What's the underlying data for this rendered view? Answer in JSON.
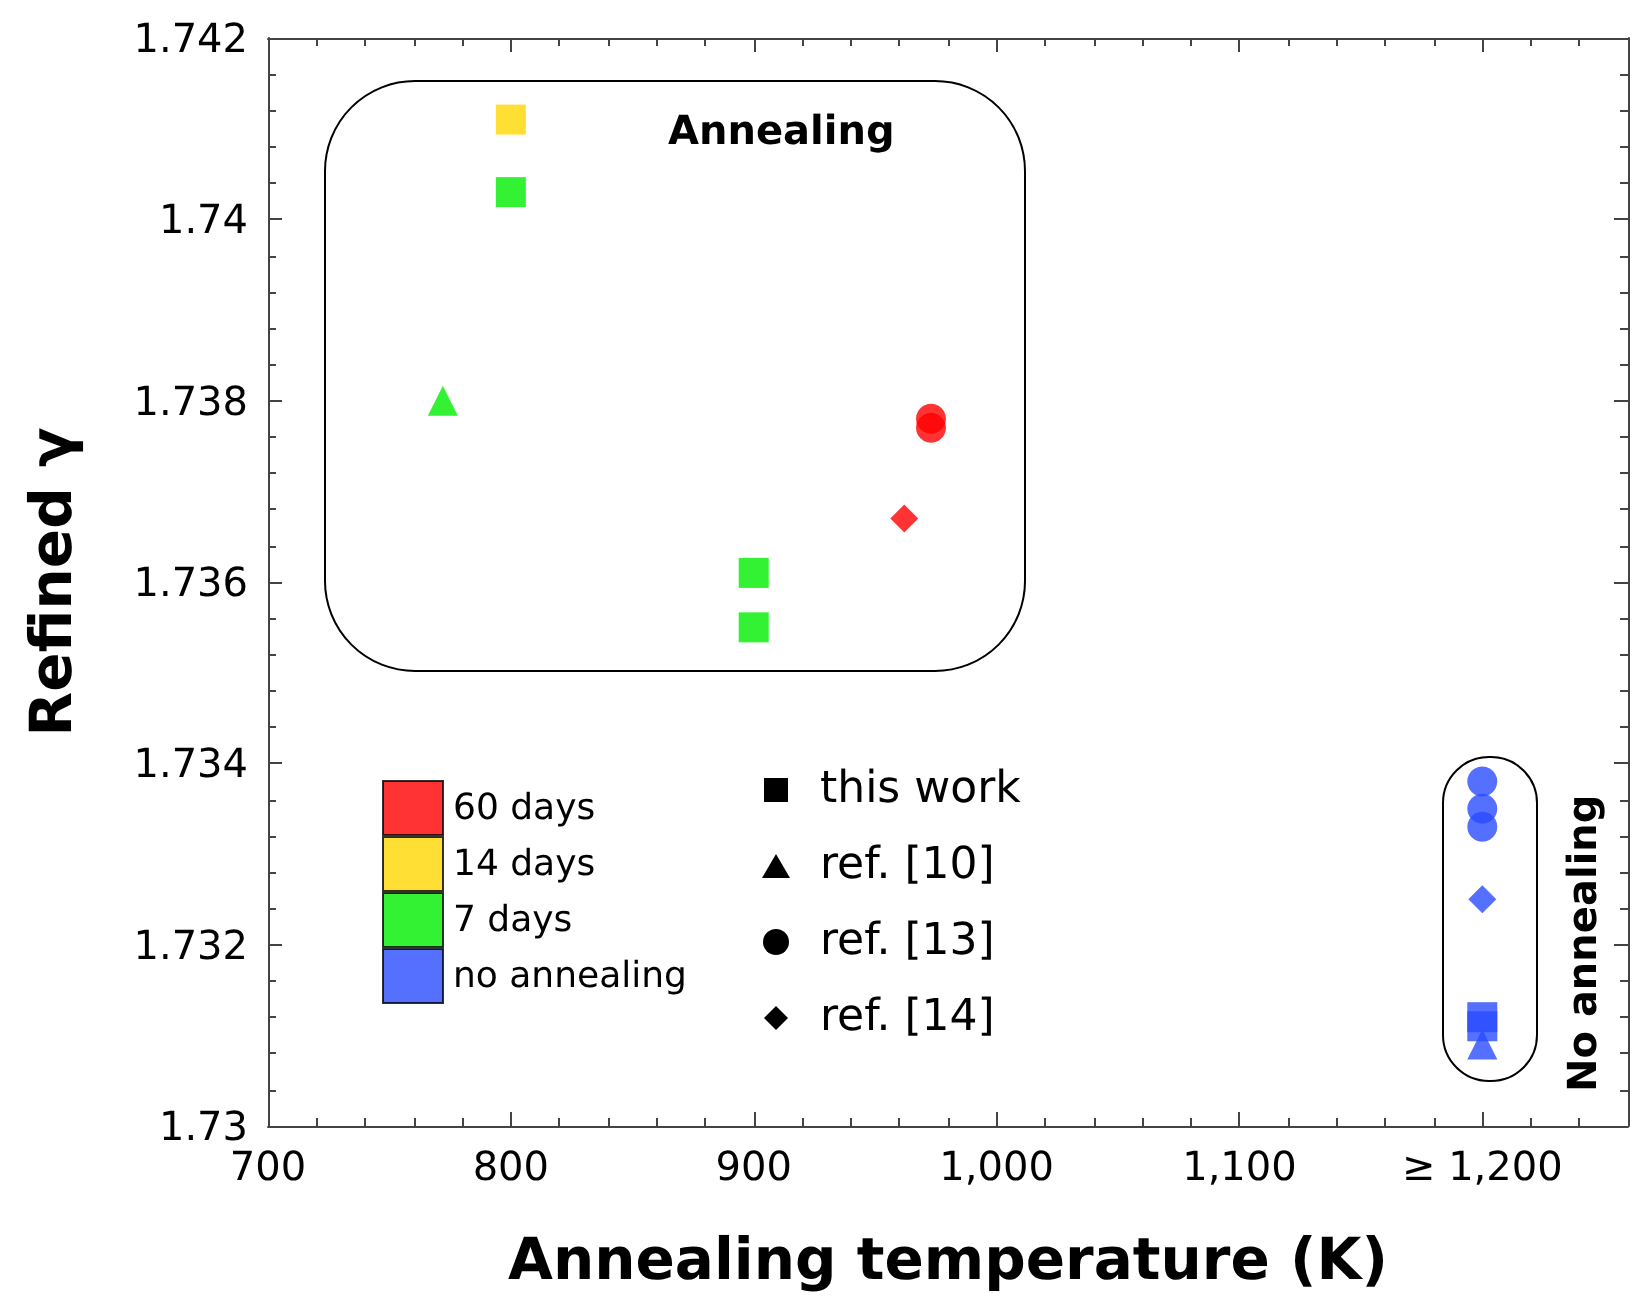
{
  "chart_data": {
    "type": "scatter",
    "xlabel": "Annealing temperature (K)",
    "ylabel": "Refined γ",
    "xlim": [
      700,
      1260
    ],
    "xticks": [
      700,
      800,
      900,
      {
        "value": 1000,
        "label": "1,000"
      },
      {
        "value": 1100,
        "label": "1,100"
      },
      {
        "value": 1200,
        "label": "≥ 1,200"
      }
    ],
    "ylim": [
      1.73,
      1.742
    ],
    "yticks": [
      1.73,
      1.732,
      1.734,
      1.736,
      1.738,
      1.74,
      1.742
    ],
    "legend": "bottom left",
    "grid": false,
    "annotations": [
      "Annealing",
      "No annealing",
      "this work",
      "ref. [10]",
      "ref. [13]",
      "ref. [14]"
    ],
    "series": [
      {
        "name": "60 days",
        "color": "#ff0000",
        "marker": "circle",
        "x": [
          973,
          973
        ],
        "values": [
          1.7378,
          1.7377
        ]
      },
      {
        "color": "#ff0000",
        "marker": "diamond",
        "x": [
          962
        ],
        "values": [
          1.7367
        ]
      },
      {
        "name": "14 days",
        "color": "#ffd700",
        "marker": "square",
        "x": [
          800
        ],
        "values": [
          1.7411
        ]
      },
      {
        "name": "7 days",
        "color": "#00ee00",
        "marker": "square",
        "x": [
          800,
          900,
          900
        ],
        "values": [
          1.7403,
          1.7361,
          1.7355
        ]
      },
      {
        "color": "#00ee00",
        "marker": "triangle",
        "x": [
          772
        ],
        "values": [
          1.738
        ]
      },
      {
        "name": "no annealing",
        "color": "#2b4bff",
        "marker": "square",
        "x": [
          1200,
          1200
        ],
        "values": [
          1.7312,
          1.7311
        ]
      },
      {
        "color": "#2b4bff",
        "marker": "triangle",
        "x": [
          1200
        ],
        "values": [
          1.7309
        ]
      },
      {
        "color": "#2b4bff",
        "marker": "circle",
        "x": [
          1200,
          1200,
          1200
        ],
        "values": [
          1.7338,
          1.7335,
          1.7333
        ]
      },
      {
        "color": "#2b4bff",
        "marker": "diamond",
        "x": [
          1200
        ],
        "values": [
          1.7325
        ]
      }
    ]
  }
}
